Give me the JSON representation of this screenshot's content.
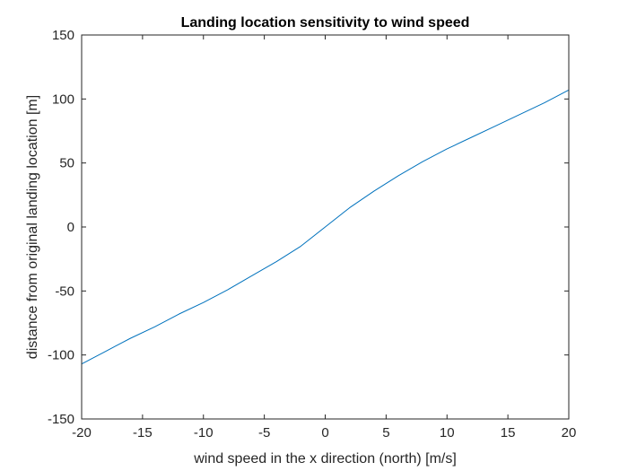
{
  "colors": {
    "background": "#ffffff",
    "axes": "#262626",
    "series": "#0072BD"
  },
  "chart_data": {
    "type": "line",
    "title": "Landing location sensitivity to wind speed",
    "xlabel": "wind speed in the x direction (north) [m/s]",
    "ylabel": "distance from original landing location [m]",
    "xlim": [
      -20,
      20
    ],
    "ylim": [
      -150,
      150
    ],
    "xticks": [
      -20,
      -15,
      -10,
      -5,
      0,
      5,
      10,
      15,
      20
    ],
    "yticks": [
      -150,
      -100,
      -50,
      0,
      50,
      100,
      150
    ],
    "xticklabels": [
      "-20",
      "-15",
      "-10",
      "-5",
      "0",
      "5",
      "10",
      "15",
      "20"
    ],
    "yticklabels": [
      "-150",
      "-100",
      "-50",
      "0",
      "50",
      "100",
      "150"
    ],
    "grid": false,
    "legend": false,
    "box": true,
    "series": [
      {
        "x": [
          -20,
          -18,
          -16,
          -14,
          -12,
          -10,
          -8,
          -6,
          -4,
          -2,
          0,
          2,
          4,
          6,
          8,
          10,
          12,
          14,
          16,
          18,
          20
        ],
        "y": [
          -107,
          -97,
          -87,
          -78,
          -68,
          -59,
          -49,
          -38,
          -27,
          -15,
          0,
          15,
          28,
          40,
          51,
          61,
          70,
          79,
          88,
          97,
          107
        ]
      }
    ]
  }
}
